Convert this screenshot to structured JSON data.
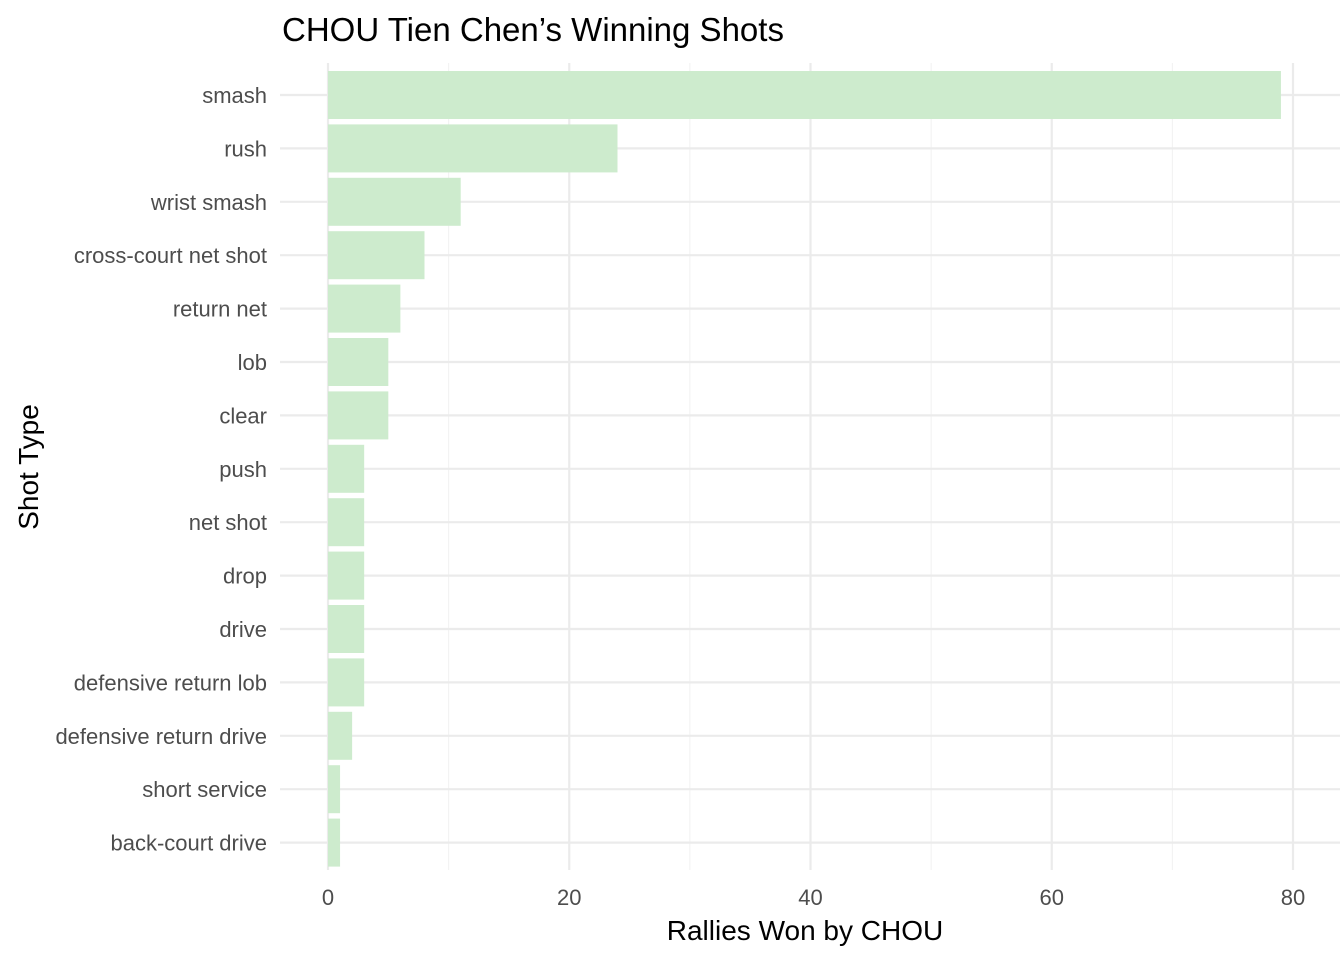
{
  "chart_data": {
    "type": "bar",
    "orientation": "horizontal",
    "title": "CHOU Tien Chen’s Winning Shots",
    "xlabel": "Rallies Won by CHOU",
    "ylabel": "Shot Type",
    "categories": [
      "smash",
      "rush",
      "wrist smash",
      "cross-court net shot",
      "return net",
      "lob",
      "clear",
      "push",
      "net shot",
      "drop",
      "drive",
      "defensive return lob",
      "defensive return drive",
      "short service",
      "back-court drive"
    ],
    "values": [
      79,
      24,
      11,
      8,
      6,
      5,
      5,
      3,
      3,
      3,
      3,
      3,
      2,
      1,
      1
    ],
    "xlim": [
      0,
      80
    ],
    "xticks": [
      0,
      20,
      40,
      60,
      80
    ],
    "grid": true,
    "legend": "none",
    "bar_color": "#CDEBCD"
  }
}
